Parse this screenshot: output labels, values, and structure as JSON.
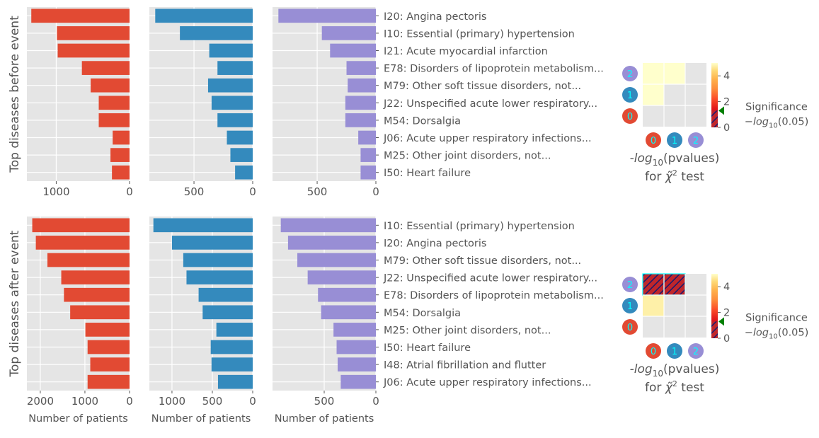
{
  "colors": {
    "cluster0": "#E24A33",
    "cluster1": "#348ABD",
    "cluster2": "#988ED5",
    "panel_bg": "#E5E5E5",
    "grid": "#FFFFFF",
    "text": "#555555",
    "marker": "#008000",
    "hatch": "#00FFFF"
  },
  "chart_data": [
    {
      "type": "bar",
      "orientation": "horizontal",
      "ylabel": "Top diseases before event",
      "xlabel": "",
      "panels": [
        {
          "name": "0",
          "color": "cluster0",
          "xlim": [
            1400,
            0
          ],
          "xticks": [
            1000,
            0
          ],
          "values": [
            1340,
            990,
            980,
            650,
            530,
            420,
            420,
            230,
            260,
            240
          ]
        },
        {
          "name": "1",
          "color": "cluster1",
          "xlim": [
            880,
            0
          ],
          "xticks": [
            500,
            0
          ],
          "values": [
            830,
            620,
            370,
            300,
            380,
            350,
            300,
            220,
            190,
            150
          ]
        },
        {
          "name": "2",
          "color": "cluster2",
          "xlim": [
            880,
            0
          ],
          "xticks": [
            500,
            0
          ],
          "values": [
            830,
            460,
            390,
            250,
            240,
            260,
            260,
            150,
            130,
            130
          ]
        }
      ],
      "categories": [
        "I20: Angina pectoris",
        "I10: Essential (primary) hypertension",
        "I21: Acute myocardial infarction",
        "E78: Disorders of lipoprotein metabolism...",
        "M79: Other soft tissue disorders, not...",
        "J22: Unspecified acute lower respiratory...",
        "M54: Dorsalgia",
        "J06: Acute upper respiratory infections...",
        "M25: Other joint disorders, not...",
        "I50: Heart failure"
      ],
      "heatmap": {
        "type": "heatmap",
        "xticks": [
          "0",
          "1",
          "2"
        ],
        "yticks": [
          "0",
          "1",
          "2"
        ],
        "values": [
          [
            0,
            0,
            0
          ],
          [
            5,
            0,
            0
          ],
          [
            5,
            5,
            0
          ]
        ],
        "significant": [
          [
            false,
            false,
            false
          ],
          [
            false,
            false,
            false
          ],
          [
            false,
            false,
            false
          ]
        ],
        "colorbar_ticks": [
          0,
          2,
          4
        ],
        "colorbar_max": 5,
        "threshold": 1.3
      }
    },
    {
      "type": "bar",
      "orientation": "horizontal",
      "ylabel": "Top diseases after event",
      "xlabel": "Number of patients",
      "panels": [
        {
          "name": "0",
          "color": "cluster0",
          "xlim": [
            2300,
            0
          ],
          "xticks": [
            2000,
            1000,
            0
          ],
          "values": [
            2180,
            2100,
            1840,
            1530,
            1470,
            1330,
            990,
            940,
            880,
            940
          ]
        },
        {
          "name": "1",
          "color": "cluster1",
          "xlim": [
            1280,
            0
          ],
          "xticks": [
            1000,
            500,
            0
          ],
          "values": [
            1230,
            1000,
            860,
            820,
            670,
            620,
            450,
            520,
            510,
            430
          ]
        },
        {
          "name": "2",
          "color": "cluster2",
          "xlim": [
            1000,
            0
          ],
          "xticks": [
            500,
            0
          ],
          "values": [
            920,
            850,
            760,
            660,
            560,
            530,
            410,
            380,
            370,
            340
          ]
        }
      ],
      "categories": [
        "I10: Essential (primary) hypertension",
        "I20: Angina pectoris",
        "M79: Other soft tissue disorders, not...",
        "J22: Unspecified acute lower respiratory...",
        "E78: Disorders of lipoprotein metabolism...",
        "M54: Dorsalgia",
        "M25: Other joint disorders, not...",
        "I50: Heart failure",
        "I48: Atrial fibrillation and flutter",
        "J06: Acute upper respiratory infections..."
      ],
      "heatmap": {
        "type": "heatmap",
        "xticks": [
          "0",
          "1",
          "2"
        ],
        "yticks": [
          "0",
          "1",
          "2"
        ],
        "values": [
          [
            0,
            0,
            0
          ],
          [
            4,
            0,
            0
          ],
          [
            1,
            1,
            0
          ]
        ],
        "significant": [
          [
            false,
            false,
            false
          ],
          [
            false,
            false,
            false
          ],
          [
            true,
            true,
            false
          ]
        ],
        "colorbar_ticks": [
          0,
          2,
          4
        ],
        "colorbar_max": 5,
        "threshold": 1.3
      }
    }
  ],
  "heatmap_labels": {
    "xlabel_prefix": "-log",
    "xlabel_sub": "10",
    "xlabel_suffix": "(pvalues)",
    "xlabel_line2_pre": "for ",
    "xlabel_line2_chi": "χ̃",
    "xlabel_line2_sup": "2",
    "xlabel_line2_post": " test",
    "significance_title": "Significance",
    "significance_prefix": "−log",
    "significance_sub": "10",
    "significance_suffix": "(0.05)"
  }
}
